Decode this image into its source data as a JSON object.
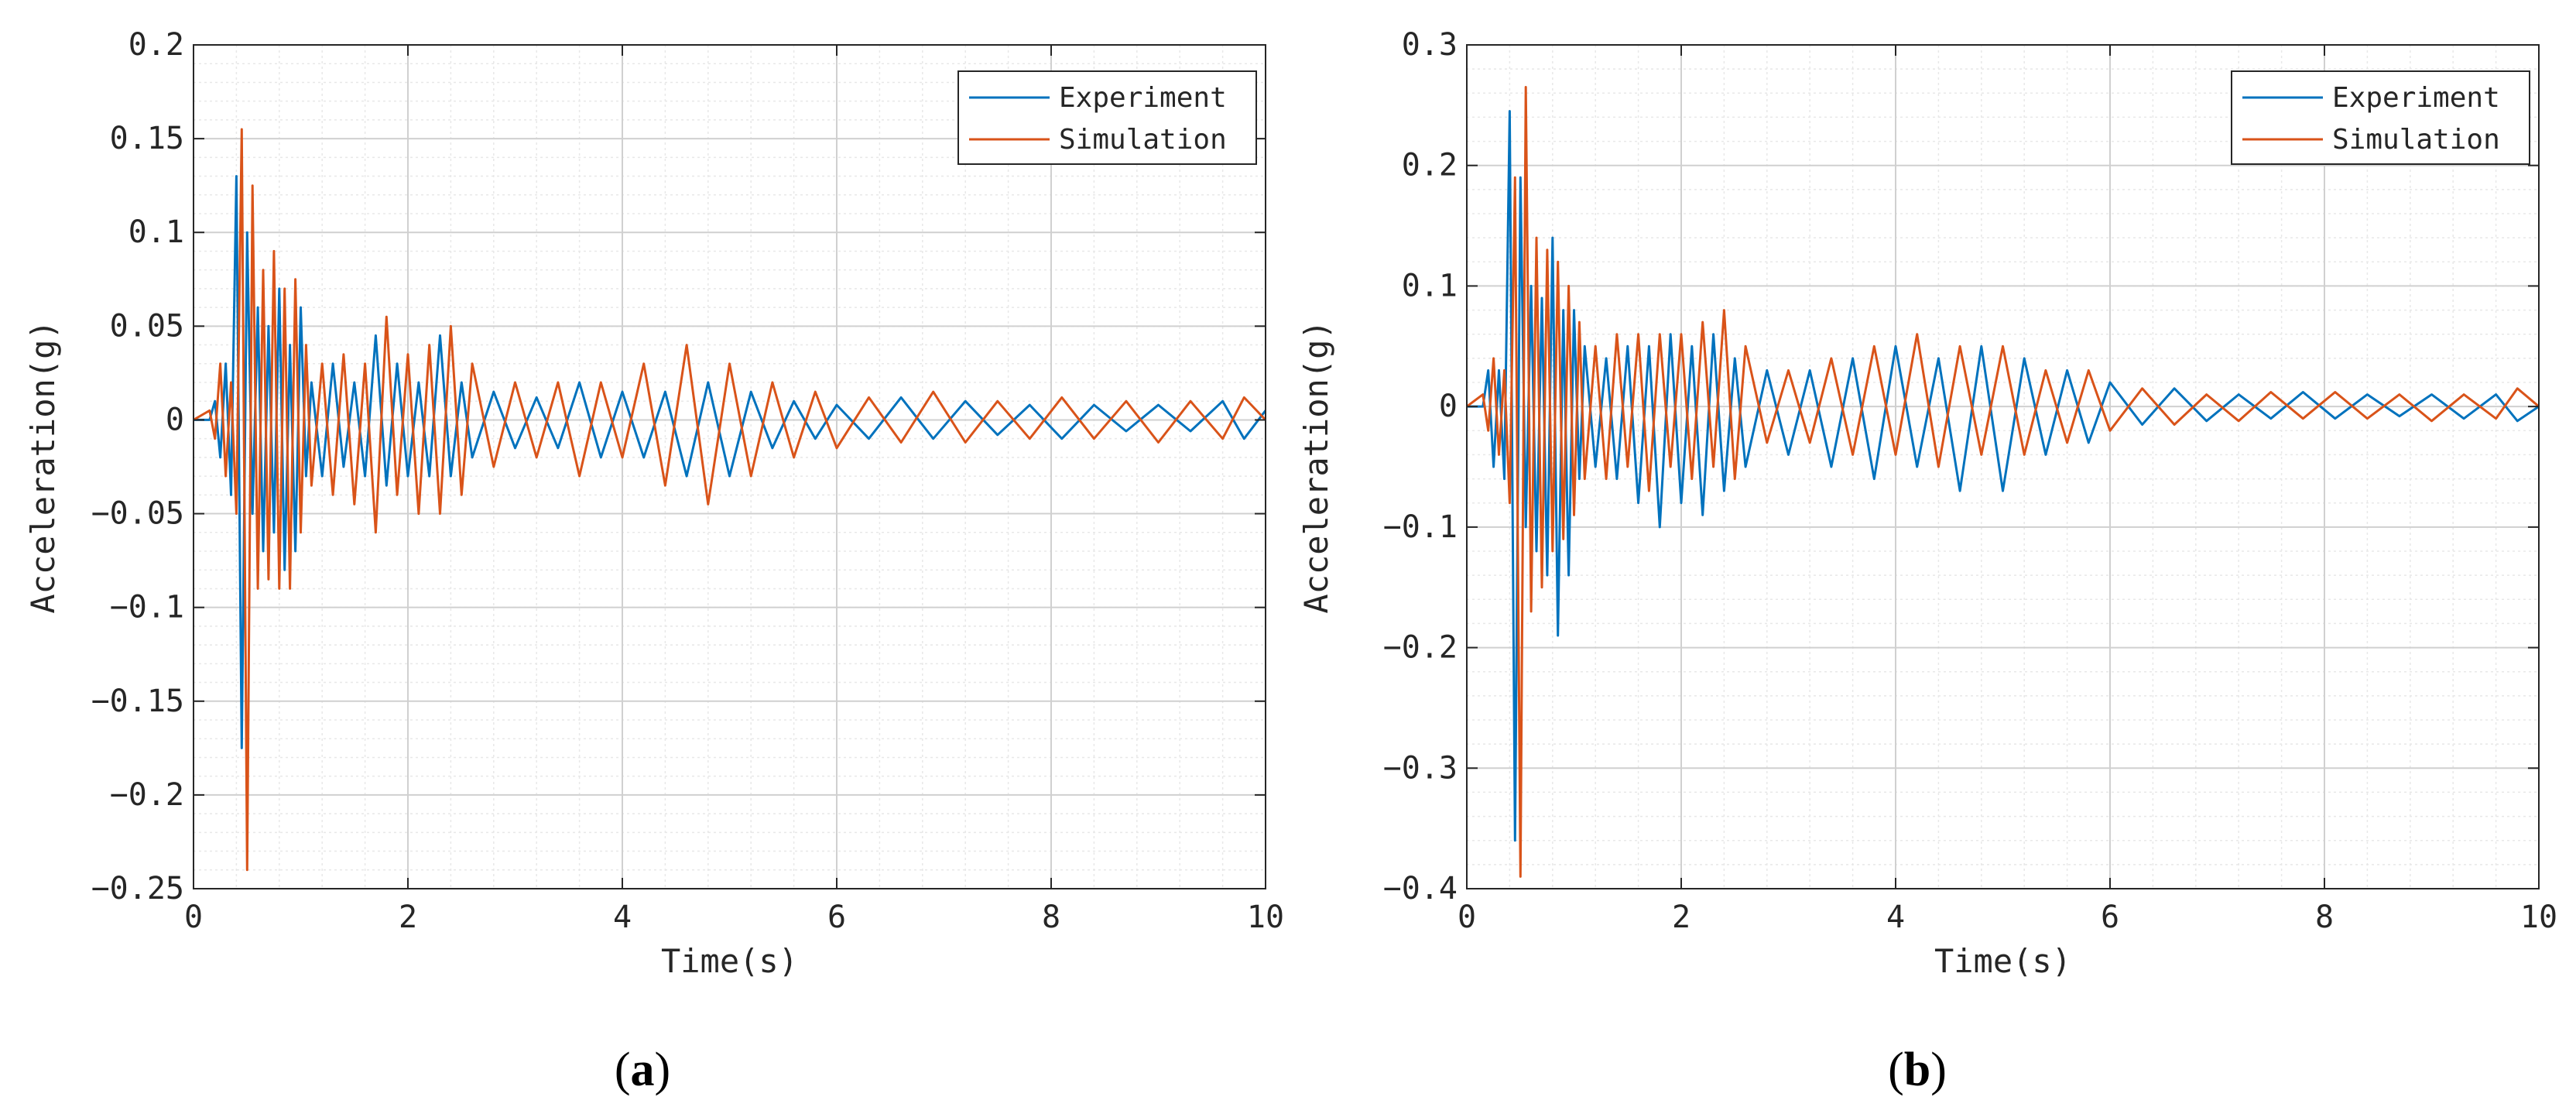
{
  "colors": {
    "experiment": "#0072BD",
    "simulation": "#D95319",
    "grid_major": "#d0d0d0",
    "grid_minor": "#e8e8e8",
    "axes": "#262626"
  },
  "chart_data": [
    {
      "id": "a",
      "type": "line",
      "panel_label": {
        "open": "(",
        "letter": "a",
        "close": ")"
      },
      "xlabel": "Time(s)",
      "ylabel": "Acceleration(g)",
      "xlim": [
        0,
        10
      ],
      "ylim": [
        -0.25,
        0.2
      ],
      "xticks": [
        0,
        2,
        4,
        6,
        8,
        10
      ],
      "xtick_labels": [
        "0",
        "2",
        "4",
        "6",
        "8",
        "10"
      ],
      "yticks": [
        0.2,
        0.15,
        0.1,
        0.05,
        0,
        -0.05,
        -0.1,
        -0.15,
        -0.2,
        -0.25
      ],
      "ytick_labels": [
        "0.2",
        "0.15",
        "0.1",
        "0.05",
        "0",
        "-0.05",
        "-0.1",
        "-0.15",
        "-0.2",
        "-0.25"
      ],
      "grid": true,
      "legend": {
        "position": "top-right",
        "entries": [
          "Experiment",
          "Simulation"
        ]
      },
      "series": [
        {
          "name": "Experiment",
          "color_key": "experiment",
          "x": [
            0,
            0.15,
            0.2,
            0.25,
            0.3,
            0.35,
            0.4,
            0.45,
            0.5,
            0.55,
            0.6,
            0.65,
            0.7,
            0.75,
            0.8,
            0.85,
            0.9,
            0.95,
            1.0,
            1.05,
            1.1,
            1.2,
            1.3,
            1.4,
            1.5,
            1.6,
            1.7,
            1.8,
            1.9,
            2.0,
            2.1,
            2.2,
            2.3,
            2.4,
            2.5,
            2.6,
            2.8,
            3.0,
            3.2,
            3.4,
            3.6,
            3.8,
            4.0,
            4.2,
            4.4,
            4.6,
            4.8,
            5.0,
            5.2,
            5.4,
            5.6,
            5.8,
            6.0,
            6.3,
            6.6,
            6.9,
            7.2,
            7.5,
            7.8,
            8.1,
            8.4,
            8.7,
            9.0,
            9.3,
            9.6,
            9.8,
            10.0
          ],
          "y": [
            0,
            0,
            0.01,
            -0.02,
            0.03,
            -0.04,
            0.13,
            -0.175,
            0.1,
            -0.05,
            0.06,
            -0.07,
            0.05,
            -0.06,
            0.07,
            -0.08,
            0.04,
            -0.07,
            0.06,
            -0.03,
            0.02,
            -0.03,
            0.03,
            -0.025,
            0.02,
            -0.03,
            0.045,
            -0.035,
            0.03,
            -0.03,
            0.02,
            -0.03,
            0.045,
            -0.03,
            0.02,
            -0.02,
            0.015,
            -0.015,
            0.012,
            -0.015,
            0.02,
            -0.02,
            0.015,
            -0.02,
            0.015,
            -0.03,
            0.02,
            -0.03,
            0.015,
            -0.015,
            0.01,
            -0.01,
            0.008,
            -0.01,
            0.012,
            -0.01,
            0.01,
            -0.008,
            0.008,
            -0.01,
            0.008,
            -0.006,
            0.008,
            -0.006,
            0.01,
            -0.01,
            0.005
          ]
        },
        {
          "name": "Simulation",
          "color_key": "simulation",
          "x": [
            0,
            0.15,
            0.2,
            0.25,
            0.3,
            0.35,
            0.4,
            0.45,
            0.5,
            0.55,
            0.6,
            0.65,
            0.7,
            0.75,
            0.8,
            0.85,
            0.9,
            0.95,
            1.0,
            1.05,
            1.1,
            1.2,
            1.3,
            1.4,
            1.5,
            1.6,
            1.7,
            1.8,
            1.9,
            2.0,
            2.1,
            2.2,
            2.3,
            2.4,
            2.5,
            2.6,
            2.8,
            3.0,
            3.2,
            3.4,
            3.6,
            3.8,
            4.0,
            4.2,
            4.4,
            4.6,
            4.8,
            5.0,
            5.2,
            5.4,
            5.6,
            5.8,
            6.0,
            6.3,
            6.6,
            6.9,
            7.2,
            7.5,
            7.8,
            8.1,
            8.4,
            8.7,
            9.0,
            9.3,
            9.6,
            9.8,
            10.0
          ],
          "y": [
            0,
            0.005,
            -0.01,
            0.03,
            -0.03,
            0.02,
            -0.05,
            0.155,
            -0.24,
            0.125,
            -0.09,
            0.08,
            -0.085,
            0.09,
            -0.09,
            0.07,
            -0.09,
            0.075,
            -0.06,
            0.04,
            -0.035,
            0.03,
            -0.04,
            0.035,
            -0.045,
            0.03,
            -0.06,
            0.055,
            -0.04,
            0.035,
            -0.05,
            0.04,
            -0.05,
            0.05,
            -0.04,
            0.03,
            -0.025,
            0.02,
            -0.02,
            0.02,
            -0.03,
            0.02,
            -0.02,
            0.03,
            -0.035,
            0.04,
            -0.045,
            0.03,
            -0.03,
            0.02,
            -0.02,
            0.015,
            -0.015,
            0.012,
            -0.012,
            0.015,
            -0.012,
            0.01,
            -0.01,
            0.012,
            -0.01,
            0.01,
            -0.012,
            0.01,
            -0.01,
            0.012,
            0
          ]
        }
      ]
    },
    {
      "id": "b",
      "type": "line",
      "panel_label": {
        "open": "(",
        "letter": "b",
        "close": ")"
      },
      "xlabel": "Time(s)",
      "ylabel": "Acceleration(g)",
      "xlim": [
        0,
        10
      ],
      "ylim": [
        -0.4,
        0.3
      ],
      "xticks": [
        0,
        2,
        4,
        6,
        8,
        10
      ],
      "xtick_labels": [
        "0",
        "2",
        "4",
        "6",
        "8",
        "10"
      ],
      "yticks": [
        0.3,
        0.2,
        0.1,
        0,
        -0.1,
        -0.2,
        -0.3,
        -0.4
      ],
      "ytick_labels": [
        "0.3",
        "0.2",
        "0.1",
        "0",
        "-0.1",
        "-0.2",
        "-0.3",
        "-0.4"
      ],
      "grid": true,
      "legend": {
        "position": "top-right",
        "entries": [
          "Experiment",
          "Simulation"
        ]
      },
      "series": [
        {
          "name": "Experiment",
          "color_key": "experiment",
          "x": [
            0,
            0.15,
            0.2,
            0.25,
            0.3,
            0.35,
            0.4,
            0.45,
            0.5,
            0.55,
            0.6,
            0.65,
            0.7,
            0.75,
            0.8,
            0.85,
            0.9,
            0.95,
            1.0,
            1.05,
            1.1,
            1.2,
            1.3,
            1.4,
            1.5,
            1.6,
            1.7,
            1.8,
            1.9,
            2.0,
            2.1,
            2.2,
            2.3,
            2.4,
            2.5,
            2.6,
            2.8,
            3.0,
            3.2,
            3.4,
            3.6,
            3.8,
            4.0,
            4.2,
            4.4,
            4.6,
            4.8,
            5.0,
            5.2,
            5.4,
            5.6,
            5.8,
            6.0,
            6.3,
            6.6,
            6.9,
            7.2,
            7.5,
            7.8,
            8.1,
            8.4,
            8.7,
            9.0,
            9.3,
            9.6,
            9.8,
            10.0
          ],
          "y": [
            0,
            0,
            0.03,
            -0.05,
            0.03,
            -0.06,
            0.245,
            -0.36,
            0.19,
            -0.1,
            0.1,
            -0.12,
            0.09,
            -0.14,
            0.14,
            -0.19,
            0.08,
            -0.14,
            0.08,
            -0.06,
            0.05,
            -0.05,
            0.04,
            -0.06,
            0.05,
            -0.08,
            0.05,
            -0.1,
            0.06,
            -0.08,
            0.05,
            -0.09,
            0.06,
            -0.07,
            0.04,
            -0.05,
            0.03,
            -0.04,
            0.03,
            -0.05,
            0.04,
            -0.06,
            0.05,
            -0.05,
            0.04,
            -0.07,
            0.05,
            -0.07,
            0.04,
            -0.04,
            0.03,
            -0.03,
            0.02,
            -0.015,
            0.015,
            -0.012,
            0.01,
            -0.01,
            0.012,
            -0.01,
            0.01,
            -0.008,
            0.01,
            -0.01,
            0.01,
            -0.012,
            0
          ]
        },
        {
          "name": "Simulation",
          "color_key": "simulation",
          "x": [
            0,
            0.15,
            0.2,
            0.25,
            0.3,
            0.35,
            0.4,
            0.45,
            0.5,
            0.55,
            0.6,
            0.65,
            0.7,
            0.75,
            0.8,
            0.85,
            0.9,
            0.95,
            1.0,
            1.05,
            1.1,
            1.2,
            1.3,
            1.4,
            1.5,
            1.6,
            1.7,
            1.8,
            1.9,
            2.0,
            2.1,
            2.2,
            2.3,
            2.4,
            2.5,
            2.6,
            2.8,
            3.0,
            3.2,
            3.4,
            3.6,
            3.8,
            4.0,
            4.2,
            4.4,
            4.6,
            4.8,
            5.0,
            5.2,
            5.4,
            5.6,
            5.8,
            6.0,
            6.3,
            6.6,
            6.9,
            7.2,
            7.5,
            7.8,
            8.1,
            8.4,
            8.7,
            9.0,
            9.3,
            9.6,
            9.8,
            10.0
          ],
          "y": [
            0,
            0.01,
            -0.02,
            0.04,
            -0.04,
            0.03,
            -0.08,
            0.19,
            -0.39,
            0.265,
            -0.17,
            0.14,
            -0.15,
            0.13,
            -0.12,
            0.12,
            -0.11,
            0.1,
            -0.09,
            0.07,
            -0.06,
            0.05,
            -0.06,
            0.06,
            -0.05,
            0.06,
            -0.07,
            0.06,
            -0.05,
            0.06,
            -0.06,
            0.07,
            -0.05,
            0.08,
            -0.06,
            0.05,
            -0.03,
            0.03,
            -0.03,
            0.04,
            -0.04,
            0.05,
            -0.04,
            0.06,
            -0.05,
            0.05,
            -0.04,
            0.05,
            -0.04,
            0.03,
            -0.03,
            0.03,
            -0.02,
            0.015,
            -0.015,
            0.01,
            -0.012,
            0.012,
            -0.01,
            0.012,
            -0.01,
            0.01,
            -0.012,
            0.01,
            -0.01,
            0.015,
            0
          ]
        }
      ]
    }
  ]
}
